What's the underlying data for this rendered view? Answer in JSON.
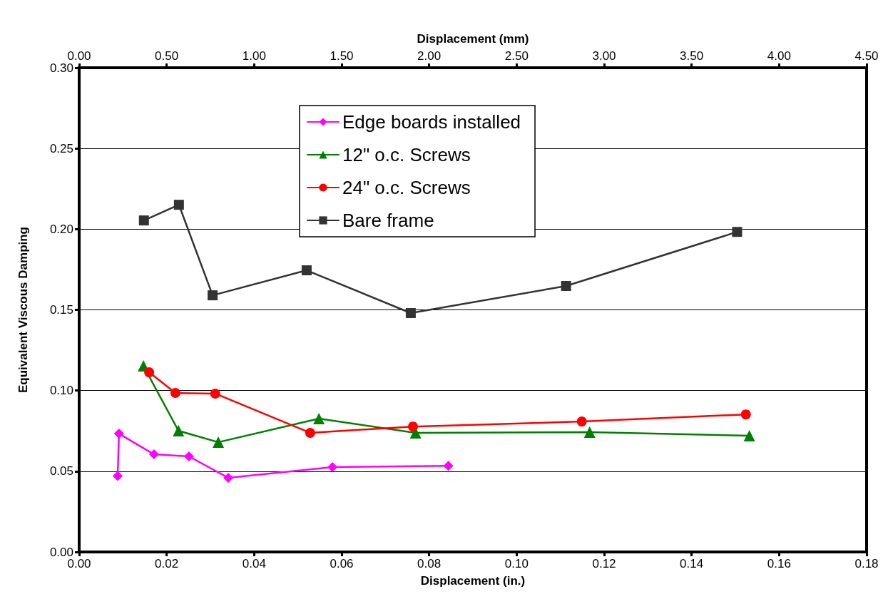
{
  "chart_data": {
    "type": "line",
    "xlabel": "Displacement (in.)",
    "x2label": "Displacement (mm)",
    "ylabel": "Equivalent Viscous Damping",
    "xlim": [
      0,
      0.18
    ],
    "xticks": [
      {
        "value": 0,
        "label": "0.00"
      },
      {
        "value": 0.02,
        "label": "0.02"
      },
      {
        "value": 0.04,
        "label": "0.04"
      },
      {
        "value": 0.06,
        "label": "0.06"
      },
      {
        "value": 0.08,
        "label": "0.08"
      },
      {
        "value": 0.1,
        "label": "0.10"
      },
      {
        "value": 0.12,
        "label": "0.12"
      },
      {
        "value": 0.14,
        "label": "0.14"
      },
      {
        "value": 0.16,
        "label": "0.16"
      },
      {
        "value": 0.18,
        "label": "0.18"
      }
    ],
    "x2lim": [
      0,
      4.5
    ],
    "x2ticks": [
      {
        "value": 0,
        "label": "0.00"
      },
      {
        "value": 0.5,
        "label": "0.50"
      },
      {
        "value": 1,
        "label": "1.00"
      },
      {
        "value": 1.5,
        "label": "1.50"
      },
      {
        "value": 2,
        "label": "2.00"
      },
      {
        "value": 2.5,
        "label": "2.50"
      },
      {
        "value": 3,
        "label": "3.00"
      },
      {
        "value": 3.5,
        "label": "3.50"
      },
      {
        "value": 4,
        "label": "4.00"
      },
      {
        "value": 4.5,
        "label": "4.50"
      }
    ],
    "ylim": [
      0,
      0.3
    ],
    "yticks": [
      {
        "value": 0,
        "label": "0.00"
      },
      {
        "value": 0.05,
        "label": "0.05"
      },
      {
        "value": 0.1,
        "label": "0.10"
      },
      {
        "value": 0.15,
        "label": "0.15"
      },
      {
        "value": 0.2,
        "label": "0.20"
      },
      {
        "value": 0.25,
        "label": "0.25"
      },
      {
        "value": 0.3,
        "label": "0.30"
      }
    ],
    "grid": "y",
    "legend": "top",
    "line_style": "solid",
    "series": [
      {
        "name": "Edge boards installed",
        "color": "#ff00ff",
        "marker": "diamond",
        "x": [
          0.0088,
          0.0091,
          0.0171,
          0.0251,
          0.0341,
          0.0579,
          0.0844
        ],
        "values": [
          0.047,
          0.0733,
          0.0605,
          0.0592,
          0.0459,
          0.0526,
          0.0534
        ]
      },
      {
        "name": "12\" o.c. Screws",
        "color": "#008000",
        "marker": "triangle",
        "x": [
          0.0147,
          0.0227,
          0.0318,
          0.0548,
          0.0769,
          0.1167,
          0.1532
        ],
        "values": [
          0.1153,
          0.0751,
          0.068,
          0.0826,
          0.0738,
          0.0742,
          0.072
        ]
      },
      {
        "name": "24\" o.c. Screws",
        "color": "#ff0000",
        "marker": "circle",
        "x": [
          0.016,
          0.022,
          0.0311,
          0.0528,
          0.0763,
          0.1149,
          0.1524
        ],
        "values": [
          0.1113,
          0.0985,
          0.0981,
          0.0738,
          0.0777,
          0.0808,
          0.0852
        ]
      },
      {
        "name": "Bare frame",
        "color": "#333333",
        "marker": "square",
        "x": [
          0.0148,
          0.0228,
          0.0305,
          0.052,
          0.0758,
          0.1113,
          0.1504
        ],
        "values": [
          0.2054,
          0.2151,
          0.159,
          0.1745,
          0.148,
          0.1648,
          0.1983
        ]
      }
    ]
  }
}
